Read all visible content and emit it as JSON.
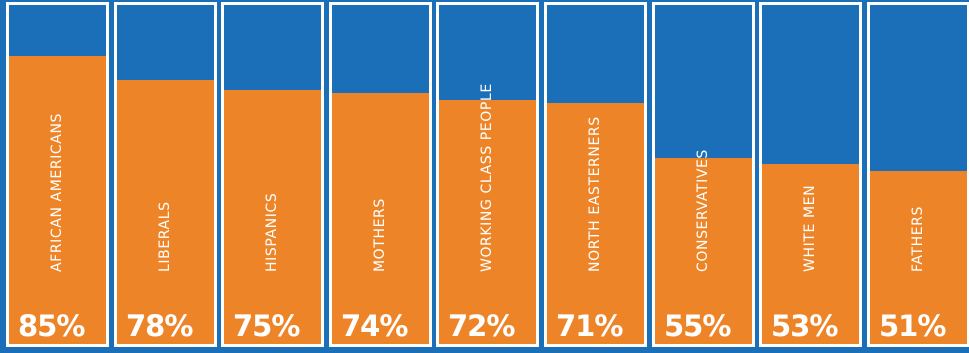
{
  "chart_data": {
    "type": "bar",
    "categories": [
      "AFRICAN AMERICANS",
      "LIBERALS",
      "HISPANICS",
      "MOTHERS",
      "WORKING CLASS PEOPLE",
      "NORTH EASTERNERS",
      "CONSERVATIVES",
      "WHITE MEN",
      "FATHERS"
    ],
    "values": [
      85,
      78,
      75,
      74,
      72,
      71,
      55,
      53,
      51
    ],
    "value_labels": [
      "85%",
      "78%",
      "75%",
      "74%",
      "72%",
      "71%",
      "55%",
      "53%",
      "51%"
    ],
    "ylim": [
      0,
      100
    ],
    "colors": {
      "bar": "#ee8428",
      "background": "#1a6fb8",
      "border": "#ffffff"
    }
  }
}
